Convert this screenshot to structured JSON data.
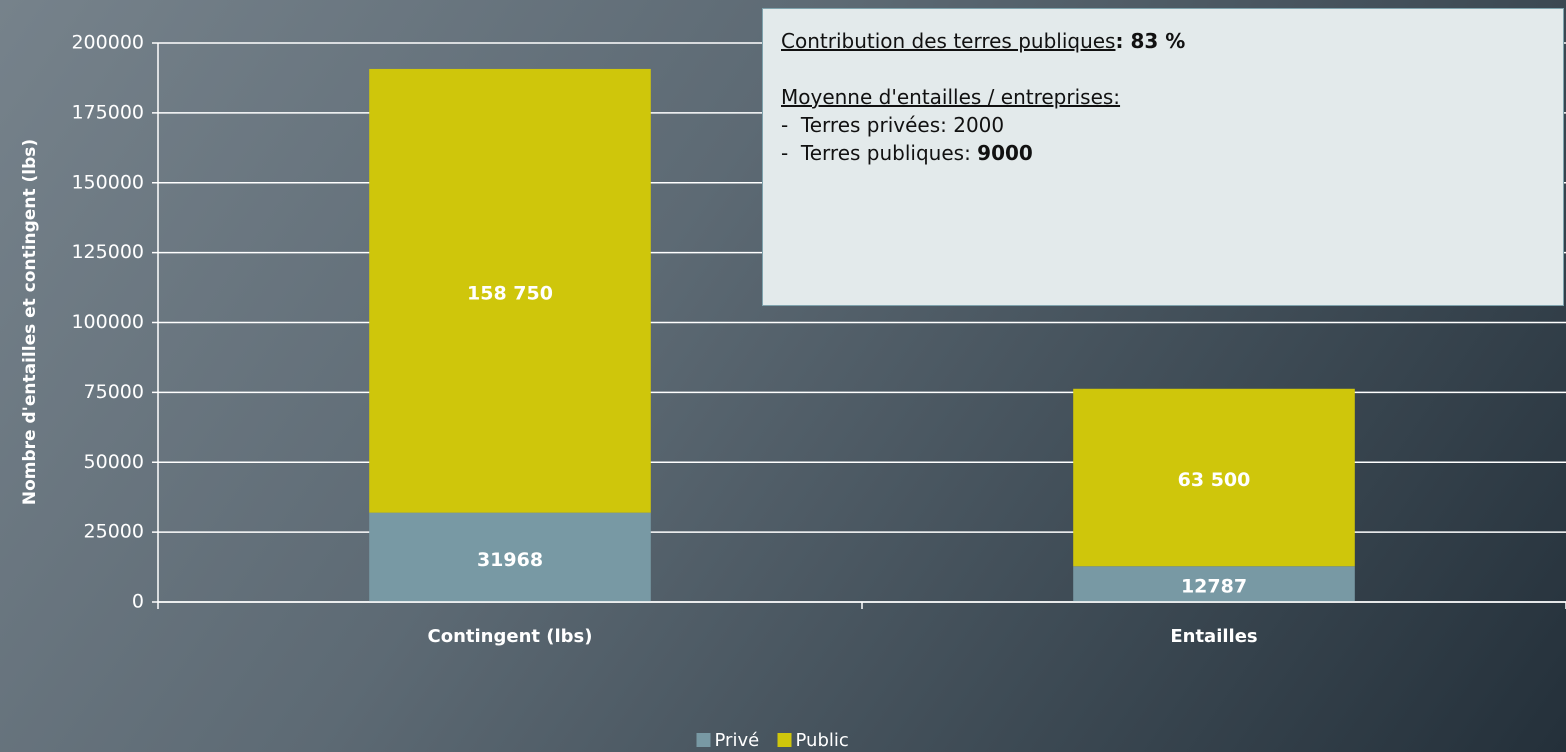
{
  "chart_data": {
    "type": "stacked_bar",
    "y_label": "Nombre d'entailles et contingent (lbs)",
    "categories": [
      "Contingent (lbs)",
      "Entailles"
    ],
    "series": [
      {
        "name": "Privé",
        "color": "#7899a4",
        "values": [
          31968,
          12787
        ]
      },
      {
        "name": "Public",
        "color": "#cfc60b",
        "values": [
          158750,
          63500
        ],
        "value_labels": [
          "158 750",
          "63 500"
        ]
      }
    ],
    "ylim": [
      0,
      200000
    ],
    "yticks": [
      0,
      25000,
      50000,
      75000,
      100000,
      125000,
      150000,
      175000,
      200000
    ],
    "grid": true,
    "legend": "bottom",
    "annotation": {
      "lines": [
        [
          "Contribution des terres publiques",
          ": ",
          "83 %"
        ],
        [
          "Moyenne d'entailles / entreprises:"
        ],
        [
          "-  Terres privées: 2000"
        ],
        [
          "-  Terres publiques: ",
          "9000"
        ]
      ]
    }
  }
}
